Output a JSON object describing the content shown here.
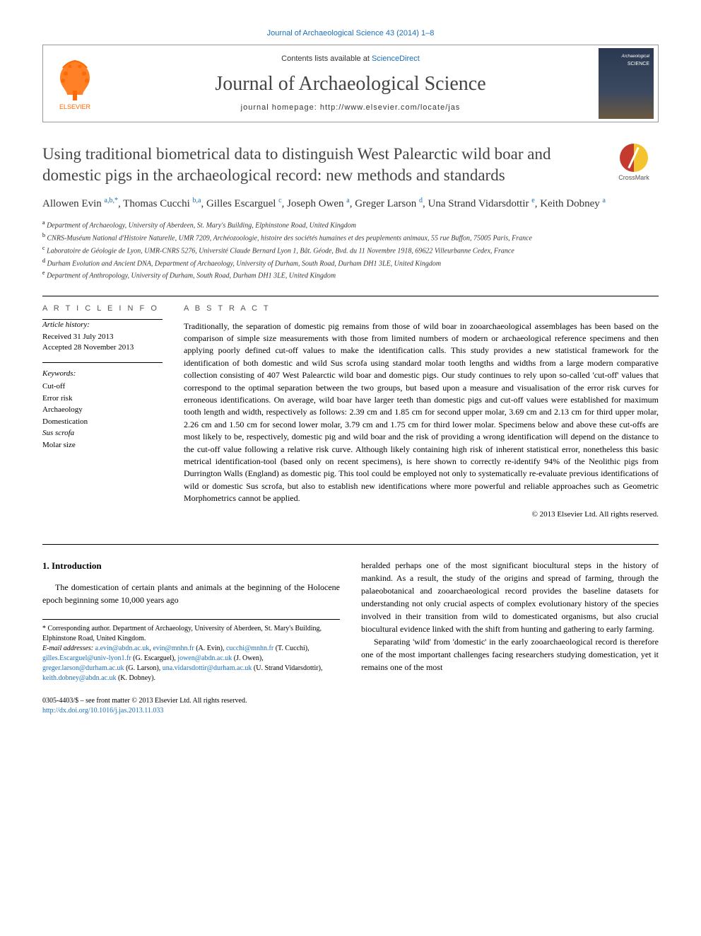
{
  "top_citation": "Journal of Archaeological Science 43 (2014) 1–8",
  "header": {
    "contents_prefix": "Contents lists available at ",
    "contents_link": "ScienceDirect",
    "journal_name": "Journal of Archaeological Science",
    "homepage_label": "journal homepage: http://www.elsevier.com/locate/jas"
  },
  "crossmark_label": "CrossMark",
  "article": {
    "title": "Using traditional biometrical data to distinguish West Palearctic wild boar and domestic pigs in the archaeological record: new methods and standards",
    "authors_html": "Allowen Evin <sup>a,b,*</sup>, Thomas Cucchi <sup>b,a</sup>, Gilles Escarguel <sup>c</sup>, Joseph Owen <sup>a</sup>, Greger Larson <sup>d</sup>, Una Strand Vidarsdottir <sup>e</sup>, Keith Dobney <sup>a</sup>",
    "affiliations": [
      {
        "sup": "a",
        "text": "Department of Archaeology, University of Aberdeen, St. Mary's Building, Elphinstone Road, United Kingdom"
      },
      {
        "sup": "b",
        "text": "CNRS-Muséum National d'Histoire Naturelle, UMR 7209, Archéozoologie, histoire des sociétés humaines et des peuplements animaux, 55 rue Buffon, 75005 Paris, France"
      },
      {
        "sup": "c",
        "text": "Laboratoire de Géologie de Lyon, UMR-CNRS 5276, Université Claude Bernard Lyon 1, Bât. Géode, Bvd. du 11 Novembre 1918, 69622 Villeurbanne Cedex, France"
      },
      {
        "sup": "d",
        "text": "Durham Evolution and Ancient DNA, Department of Archaeology, University of Durham, South Road, Durham DH1 3LE, United Kingdom"
      },
      {
        "sup": "e",
        "text": "Department of Anthropology, University of Durham, South Road, Durham DH1 3LE, United Kingdom"
      }
    ]
  },
  "info": {
    "heading": "A R T I C L E  I N F O",
    "history_label": "Article history:",
    "received": "Received 31 July 2013",
    "accepted": "Accepted 28 November 2013",
    "keywords_label": "Keywords:",
    "keywords": [
      "Cut-off",
      "Error risk",
      "Archaeology",
      "Domestication",
      "Sus scrofa",
      "Molar size"
    ]
  },
  "abstract": {
    "heading": "A B S T R A C T",
    "text": "Traditionally, the separation of domestic pig remains from those of wild boar in zooarchaeological assemblages has been based on the comparison of simple size measurements with those from limited numbers of modern or archaeological reference specimens and then applying poorly defined cut-off values to make the identification calls. This study provides a new statistical framework for the identification of both domestic and wild Sus scrofa using standard molar tooth lengths and widths from a large modern comparative collection consisting of 407 West Palearctic wild boar and domestic pigs. Our study continues to rely upon so-called 'cut-off' values that correspond to the optimal separation between the two groups, but based upon a measure and visualisation of the error risk curves for erroneous identifications. On average, wild boar have larger teeth than domestic pigs and cut-off values were established for maximum tooth length and width, respectively as follows: 2.39 cm and 1.85 cm for second upper molar, 3.69 cm and 2.13 cm for third upper molar, 2.26 cm and 1.50 cm for second lower molar, 3.79 cm and 1.75 cm for third lower molar. Specimens below and above these cut-offs are most likely to be, respectively, domestic pig and wild boar and the risk of providing a wrong identification will depend on the distance to the cut-off value following a relative risk curve. Although likely containing high risk of inherent statistical error, nonetheless this basic metrical identification-tool (based only on recent specimens), is here shown to correctly re-identify 94% of the Neolithic pigs from Durrington Walls (England) as domestic pig. This tool could be employed not only to systematically re-evaluate previous identifications of wild or domestic Sus scrofa, but also to establish new identifications where more powerful and reliable approaches such as Geometric Morphometrics cannot be applied.",
    "copyright": "© 2013 Elsevier Ltd. All rights reserved."
  },
  "body": {
    "intro_heading": "1. Introduction",
    "left_para": "The domestication of certain plants and animals at the beginning of the Holocene epoch beginning some 10,000 years ago",
    "right_para1": "heralded perhaps one of the most significant biocultural steps in the history of mankind. As a result, the study of the origins and spread of farming, through the palaeobotanical and zooarchaeological record provides the baseline datasets for understanding not only crucial aspects of complex evolutionary history of the species involved in their transition from wild to domesticated organisms, but also crucial biocultural evidence linked with the shift from hunting and gathering to early farming.",
    "right_para2": "Separating 'wild' from 'domestic' in the early zooarchaeological record is therefore one of the most important challenges facing researchers studying domestication, yet it remains one of the most"
  },
  "footnotes": {
    "corresponding": "* Corresponding author. Department of Archaeology, University of Aberdeen, St. Mary's Building, Elphinstone Road, United Kingdom.",
    "emails_label": "E-mail addresses:",
    "emails": "a.evin@abdn.ac.uk, evin@mnhn.fr (A. Evin), cucchi@mnhn.fr (T. Cucchi), gilles.Escarguel@univ-lyon1.fr (G. Escarguel), jowen@abdn.ac.uk (J. Owen), greger.larson@durham.ac.uk (G. Larson), una.vidarsdottir@durham.ac.uk (U. Strand Vidarsdottir), keith.dobney@abdn.ac.uk (K. Dobney)."
  },
  "footer": {
    "issn": "0305-4403/$ – see front matter © 2013 Elsevier Ltd. All rights reserved.",
    "doi": "http://dx.doi.org/10.1016/j.jas.2013.11.033"
  },
  "colors": {
    "link": "#1a6fb8",
    "text": "#000000",
    "muted": "#555555",
    "elsevier_orange": "#ff6a00",
    "crossmark_red": "#c43a2f",
    "crossmark_yellow": "#f4c430"
  }
}
